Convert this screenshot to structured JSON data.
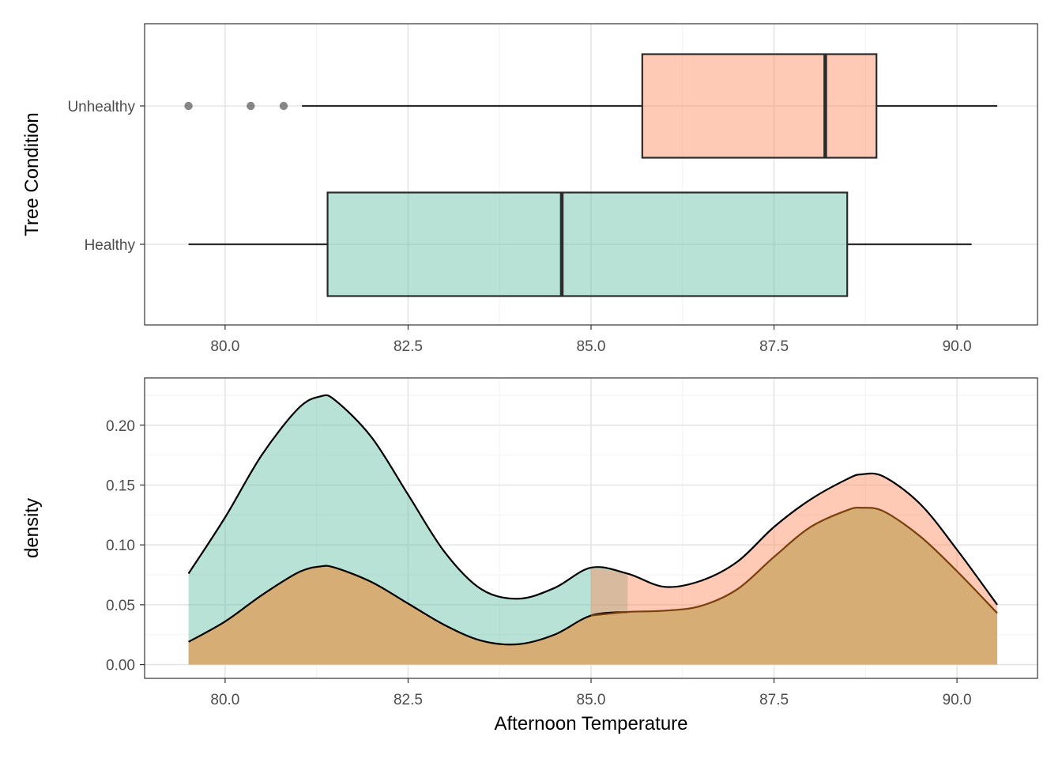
{
  "colors": {
    "healthy": "#66c2a5",
    "unhealthy": "#fc8d62",
    "box_line": "#2b2b2b",
    "outlier": "#555555",
    "grid_major": "#e5e5e5",
    "grid_minor": "#f2f2f2",
    "panel_border": "#333333",
    "overlap_line": "#7a3f0d"
  },
  "chart_data": [
    {
      "type": "boxplot",
      "orientation": "horizontal",
      "ylabel": "Tree Condition",
      "xlabel": "",
      "xlim": [
        78.9,
        91.1
      ],
      "x_ticks": [
        "80.0",
        "82.5",
        "85.0",
        "87.5",
        "90.0"
      ],
      "grid": true,
      "categories": [
        "Unhealthy",
        "Healthy"
      ],
      "boxes": [
        {
          "name": "Unhealthy",
          "whisker_low": 81.05,
          "q1": 85.7,
          "median": 88.2,
          "q3": 88.9,
          "whisker_high": 90.55,
          "outliers": [
            79.5,
            80.35,
            80.8
          ]
        },
        {
          "name": "Healthy",
          "whisker_low": 79.5,
          "q1": 81.4,
          "median": 84.6,
          "q3": 88.5,
          "whisker_high": 90.2,
          "outliers": []
        }
      ]
    },
    {
      "type": "area",
      "xlabel": "Afternoon Temperature",
      "ylabel": "density",
      "xlim": [
        78.9,
        91.1
      ],
      "ylim": [
        -0.0115,
        0.2395
      ],
      "x_ticks": [
        "80.0",
        "82.5",
        "85.0",
        "87.5",
        "90.0"
      ],
      "y_ticks": [
        "0.00",
        "0.05",
        "0.10",
        "0.15",
        "0.20"
      ],
      "grid": true,
      "stacked": true,
      "x": [
        79.5,
        80.0,
        80.5,
        81.0,
        81.3,
        81.5,
        82.0,
        82.5,
        83.0,
        83.5,
        84.0,
        84.5,
        85.0,
        85.5,
        86.0,
        86.5,
        87.0,
        87.5,
        88.0,
        88.5,
        88.7,
        89.0,
        89.5,
        90.0,
        90.55
      ],
      "series": [
        {
          "name": "Healthy",
          "values": [
            0.057,
            0.087,
            0.117,
            0.137,
            0.142,
            0.14,
            0.121,
            0.091,
            0.061,
            0.043,
            0.038,
            0.039,
            0.04,
            0.032,
            0.02,
            0.021,
            0.023,
            0.025,
            0.023,
            0.026,
            0.028,
            0.029,
            0.027,
            0.018,
            0.007
          ]
        },
        {
          "name": "Unhealthy",
          "values": [
            0.019,
            0.036,
            0.058,
            0.077,
            0.082,
            0.081,
            0.069,
            0.051,
            0.033,
            0.02,
            0.017,
            0.025,
            0.041,
            0.044,
            0.045,
            0.049,
            0.063,
            0.09,
            0.115,
            0.129,
            0.131,
            0.128,
            0.107,
            0.078,
            0.043
          ]
        }
      ]
    }
  ]
}
